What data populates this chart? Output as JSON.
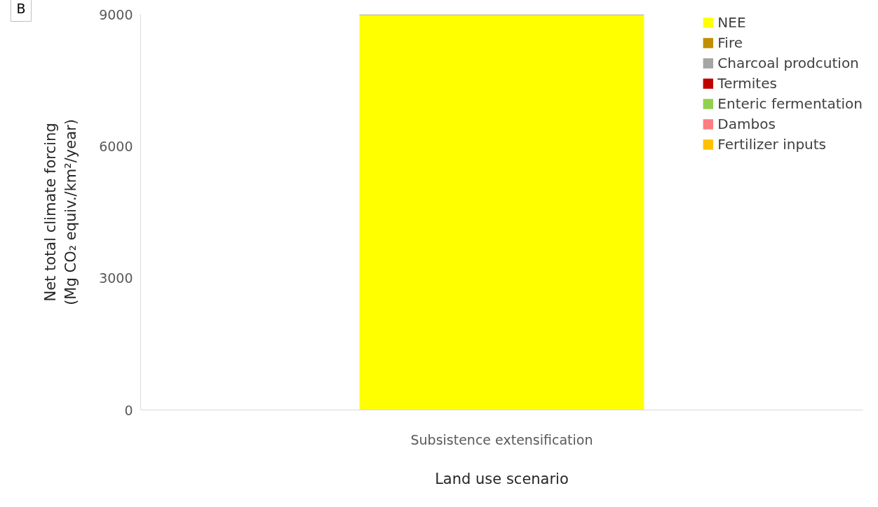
{
  "chart_data": {
    "type": "bar",
    "stacked": true,
    "categories": [
      "Subsistence extensification"
    ],
    "series": [
      {
        "name": "NEE",
        "color": "#ffff00",
        "values": [
          8980
        ]
      },
      {
        "name": "Fire",
        "color": "#bf8f00",
        "values": [
          10
        ]
      },
      {
        "name": "Charcoal prodcution",
        "color": "#a5a5a5",
        "values": [
          10
        ]
      },
      {
        "name": "Termites",
        "color": "#c00000",
        "values": [
          0
        ]
      },
      {
        "name": "Enteric fermentation",
        "color": "#92d050",
        "values": [
          0
        ]
      },
      {
        "name": "Dambos",
        "color": "#ff7c80",
        "values": [
          0
        ]
      },
      {
        "name": "Fertilizer inputs",
        "color": "#ffc000",
        "values": [
          0
        ]
      }
    ],
    "xlabel": "Land use scenario",
    "ylabel": "Net total climate forcing\n(Mg CO₂ equiv./km²/year)",
    "ylim": [
      0,
      9000
    ],
    "yticks": [
      0,
      3000,
      6000,
      9000
    ],
    "grid": false,
    "legend": "top right",
    "annotations": [
      "B"
    ]
  }
}
